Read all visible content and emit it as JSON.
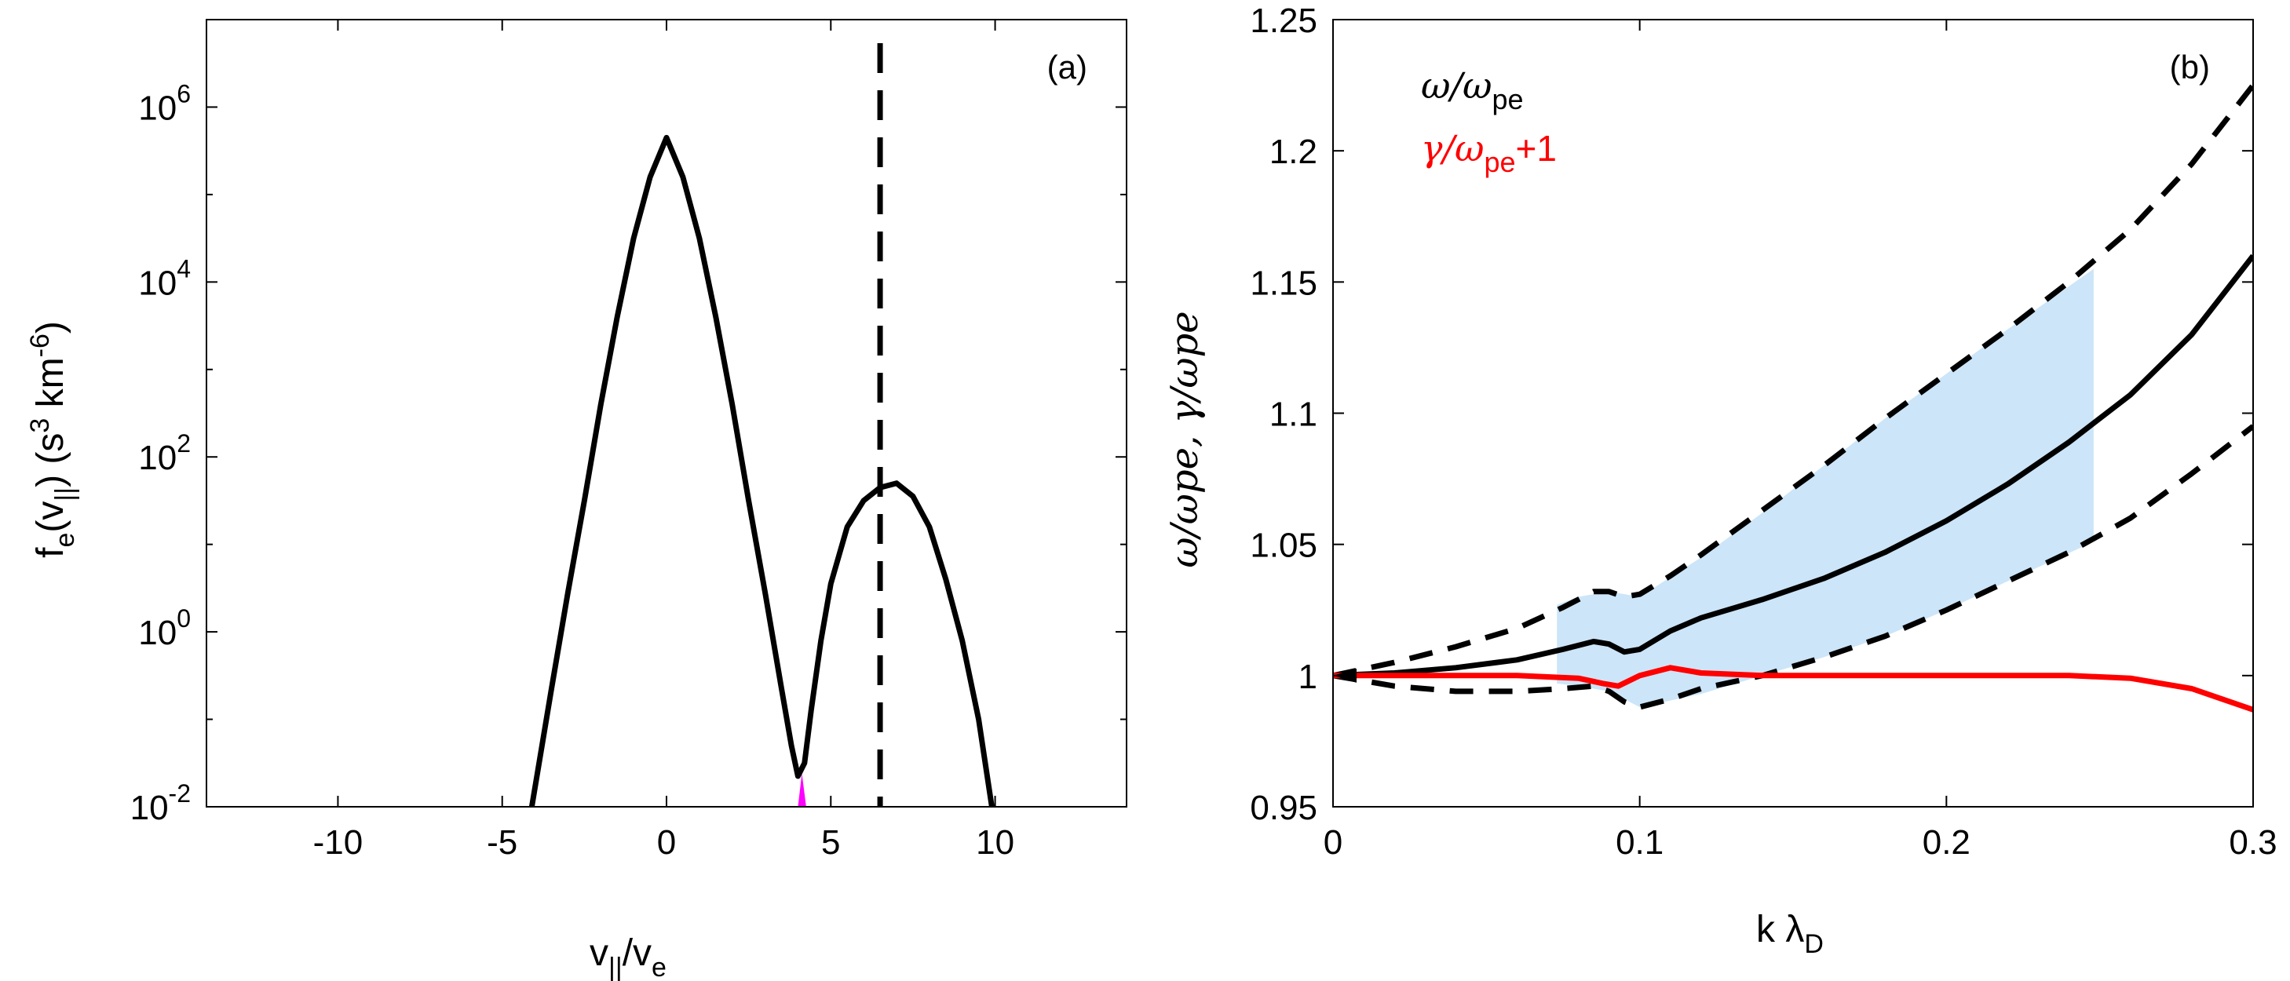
{
  "chart_data": [
    {
      "type": "line",
      "panel_label": "(a)",
      "xlabel": {
        "base": "v",
        "sub": "||",
        "mid": "/v",
        "sub2": "e"
      },
      "ylabel": {
        "a": "f",
        "asub": "e",
        "b": "(v",
        "bsub": "||",
        "c": ") (s",
        "csup": "3",
        "d": " km",
        "dsup": "-6",
        "e": ")"
      },
      "xlim": [
        -14,
        14
      ],
      "ylim_log10": [
        -2,
        7
      ],
      "yscale": "log",
      "x_ticks": [
        -10,
        -5,
        0,
        5,
        10
      ],
      "x_tick_labels": [
        "-10",
        "-5",
        "0",
        "5",
        "10"
      ],
      "y_ticks_log10": [
        -2,
        0,
        2,
        4,
        6
      ],
      "y_tick_labels": [
        {
          "base": "10",
          "exp": "-2"
        },
        {
          "base": "10",
          "exp": "0"
        },
        {
          "base": "10",
          "exp": "2"
        },
        {
          "base": "10",
          "exp": "4"
        },
        {
          "base": "10",
          "exp": "6"
        }
      ],
      "series": [
        {
          "style": "solid",
          "color": "#000000",
          "x": [
            -4.1,
            -3.5,
            -3,
            -2.5,
            -2,
            -1.5,
            -1,
            -0.5,
            0,
            0.5,
            1,
            1.5,
            2,
            2.5,
            3,
            3.5,
            3.8,
            4.0,
            4.2,
            4.4,
            4.7,
            5,
            5.5,
            6,
            6.5,
            7,
            7.5,
            8,
            8.5,
            9,
            9.5,
            9.9
          ],
          "log10_y": [
            -2.0,
            -0.65,
            0.45,
            1.5,
            2.6,
            3.6,
            4.5,
            5.2,
            5.65,
            5.2,
            4.5,
            3.6,
            2.6,
            1.5,
            0.45,
            -0.65,
            -1.3,
            -1.65,
            -1.5,
            -0.9,
            -0.1,
            0.55,
            1.2,
            1.5,
            1.65,
            1.7,
            1.55,
            1.2,
            0.6,
            -0.1,
            -1.0,
            -2.0
          ]
        }
      ],
      "vline": {
        "x": 6.5,
        "style": "dashed",
        "color": "#000000"
      },
      "highlight": {
        "x": [
          4.0,
          4.25
        ],
        "color": "#ff00ff"
      }
    },
    {
      "type": "line",
      "panel_label": "(b)",
      "xlabel": {
        "base": "k λ",
        "sub": "D"
      },
      "ylabel": "ω/ωpe, γ/ωpe",
      "xlim": [
        0,
        0.3
      ],
      "ylim": [
        0.95,
        1.25
      ],
      "x_ticks": [
        0,
        0.1,
        0.2,
        0.3
      ],
      "x_tick_labels": [
        "0",
        "0.1",
        "0.2",
        "0.3"
      ],
      "y_ticks": [
        0.95,
        1,
        1.05,
        1.1,
        1.15,
        1.2,
        1.25
      ],
      "y_tick_labels": [
        "0.95",
        "1",
        "1.05",
        "1.1",
        "1.15",
        "1.2",
        "1.25"
      ],
      "legend": [
        {
          "text": "ω/ω",
          "sub": "pe",
          "suffix": "",
          "color": "#000000"
        },
        {
          "text": "γ/ω",
          "sub": "pe",
          "suffix": "+1",
          "color": "#ff0000"
        }
      ],
      "shaded_region": {
        "color": "#cce5f8",
        "x": [
          0.073,
          0.08,
          0.09,
          0.1,
          0.12,
          0.14,
          0.16,
          0.18,
          0.2,
          0.22,
          0.248
        ],
        "upper": [
          1.027,
          1.03,
          1.032,
          1.03,
          1.045,
          1.062,
          1.08,
          1.098,
          1.115,
          1.132,
          1.155
        ],
        "lower": [
          0.997,
          0.996,
          0.994,
          0.988,
          0.993,
          1.0,
          1.007,
          1.015,
          1.025,
          1.036,
          1.051
        ]
      },
      "series": [
        {
          "name_ref": "omega_mean",
          "style": "solid",
          "color": "#000000",
          "x": [
            0,
            0.02,
            0.04,
            0.06,
            0.075,
            0.085,
            0.09,
            0.095,
            0.1,
            0.11,
            0.12,
            0.14,
            0.16,
            0.18,
            0.2,
            0.22,
            0.24,
            0.26,
            0.28,
            0.3
          ],
          "y": [
            1.0,
            1.001,
            1.003,
            1.006,
            1.01,
            1.013,
            1.012,
            1.009,
            1.01,
            1.017,
            1.022,
            1.029,
            1.037,
            1.047,
            1.059,
            1.073,
            1.089,
            1.107,
            1.13,
            1.16
          ]
        },
        {
          "name_ref": "omega_upper",
          "style": "dashed",
          "color": "#000000",
          "x": [
            0,
            0.02,
            0.04,
            0.06,
            0.075,
            0.085,
            0.09,
            0.095,
            0.1,
            0.11,
            0.12,
            0.14,
            0.16,
            0.18,
            0.2,
            0.22,
            0.24,
            0.26,
            0.28,
            0.3
          ],
          "y": [
            1.0,
            1.005,
            1.011,
            1.018,
            1.026,
            1.032,
            1.032,
            1.03,
            1.031,
            1.038,
            1.046,
            1.063,
            1.08,
            1.098,
            1.115,
            1.132,
            1.15,
            1.17,
            1.195,
            1.225
          ]
        },
        {
          "name_ref": "omega_lower",
          "style": "dashed",
          "color": "#000000",
          "x": [
            0,
            0.02,
            0.04,
            0.06,
            0.075,
            0.085,
            0.09,
            0.095,
            0.1,
            0.11,
            0.12,
            0.14,
            0.16,
            0.18,
            0.2,
            0.22,
            0.24,
            0.26,
            0.28,
            0.3
          ],
          "y": [
            1.0,
            0.996,
            0.994,
            0.994,
            0.995,
            0.996,
            0.994,
            0.99,
            0.988,
            0.991,
            0.995,
            1.0,
            1.007,
            1.015,
            1.025,
            1.036,
            1.047,
            1.06,
            1.077,
            1.095
          ]
        },
        {
          "name_ref": "gamma",
          "style": "solid",
          "color": "#ff0000",
          "x": [
            0,
            0.02,
            0.04,
            0.06,
            0.08,
            0.088,
            0.093,
            0.1,
            0.11,
            0.12,
            0.14,
            0.16,
            0.18,
            0.2,
            0.22,
            0.24,
            0.26,
            0.28,
            0.3
          ],
          "y": [
            1.0,
            1.0,
            1.0,
            1.0,
            0.999,
            0.997,
            0.996,
            1.0,
            1.003,
            1.001,
            1.0,
            1.0,
            1.0,
            1.0,
            1.0,
            1.0,
            0.999,
            0.995,
            0.987
          ]
        }
      ]
    }
  ]
}
